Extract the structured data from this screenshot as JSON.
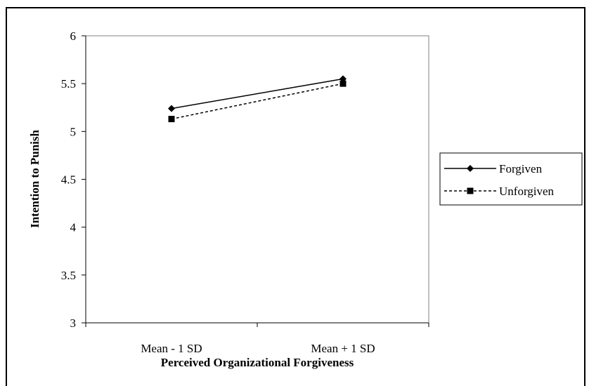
{
  "chart_data": {
    "type": "line",
    "categories": [
      "Mean - 1 SD",
      "Mean + 1 SD"
    ],
    "series": [
      {
        "name": "Forgiven",
        "values": [
          5.24,
          5.55
        ],
        "marker": "diamond",
        "line_style": "solid",
        "color": "#000000"
      },
      {
        "name": "Unforgiven",
        "values": [
          5.13,
          5.5
        ],
        "marker": "square",
        "line_style": "dashed",
        "color": "#000000"
      }
    ],
    "xlabel": "Perceived Organizational Forgiveness",
    "ylabel": "Intention to Punish",
    "ylim": [
      3,
      6
    ],
    "yticks": [
      "3",
      "3.5",
      "4",
      "4.5",
      "5",
      "5.5",
      "6"
    ],
    "grid": false,
    "legend_position": "right"
  }
}
